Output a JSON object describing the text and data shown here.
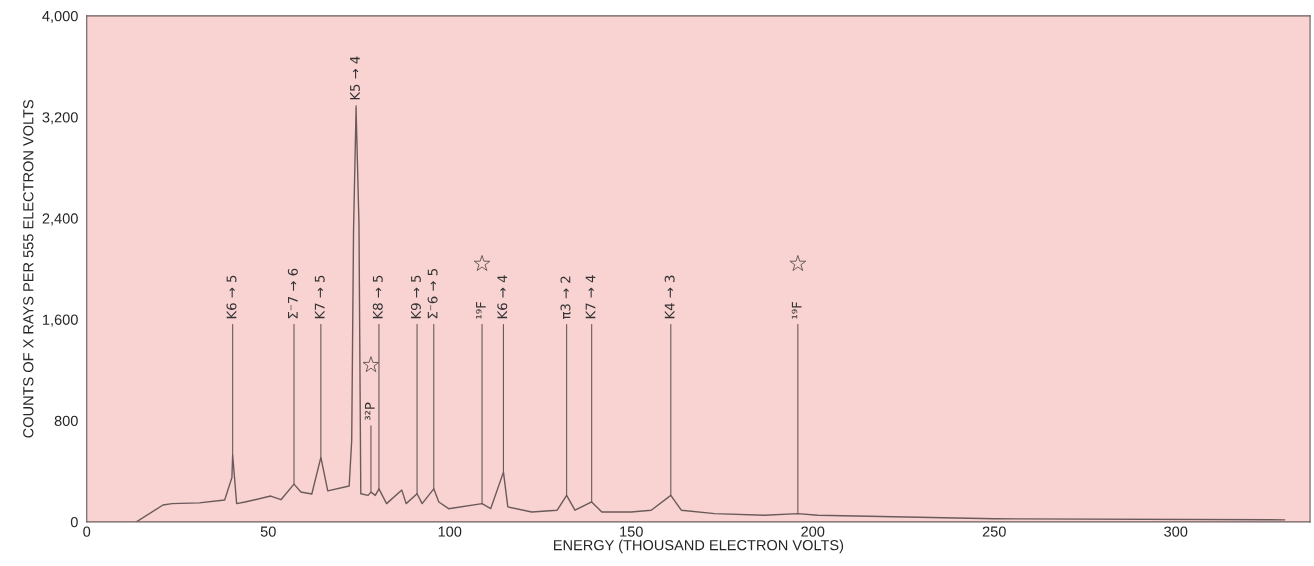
{
  "chart_data": {
    "type": "line",
    "xlabel": "ENERGY (THOUSAND ELECTRON VOLTS)",
    "ylabel": "COUNTS OF X RAYS PER 555 ELECTRON VOLTS",
    "xlim": [
      0,
      337
    ],
    "xticks": [
      0,
      50,
      100,
      150,
      200,
      250,
      300
    ],
    "ylim": [
      0,
      4000
    ],
    "yticks": [
      {
        "value": 0,
        "label": "0"
      },
      {
        "value": 800,
        "label": "800"
      },
      {
        "value": 1600,
        "label": "1,600"
      },
      {
        "value": 2400,
        "label": "2,400"
      },
      {
        "value": 3200,
        "label": "3,200"
      },
      {
        "value": 4000,
        "label": "4,000"
      }
    ],
    "grid": false,
    "legend": false,
    "marker": "none",
    "line_style": "solid",
    "series": [
      {
        "color": "#6b5a5a",
        "x": [
          13.7,
          21,
          23.5,
          31,
          38,
          40,
          40.2,
          41.3,
          43.6,
          50.7,
          53.5,
          57.1,
          59,
          62,
          64.5,
          66.4,
          72.3,
          73,
          73.5,
          74.2,
          75,
          75.5,
          77.5,
          78.3,
          79.5,
          80.5,
          82.6,
          86.8,
          88,
          91,
          92.4,
          95.6,
          97,
          99.7,
          108.9,
          111.3,
          114.8,
          116,
          122.6,
          129.6,
          132.2,
          134.5,
          139.1,
          141.9,
          150,
          155.5,
          160.9,
          163.8,
          173,
          186.7,
          195.9,
          201.4,
          250,
          330
        ],
        "values": [
          0,
          133,
          144,
          150,
          173,
          350,
          530,
          144,
          157,
          204,
          175,
          298,
          236,
          220,
          510,
          245,
          283,
          645,
          2300,
          3270,
          2350,
          222,
          209,
          235,
          209,
          261,
          144,
          251,
          144,
          222,
          144,
          261,
          157,
          104,
          144,
          105,
          393,
          118,
          78,
          92,
          209,
          92,
          157,
          78,
          78,
          92,
          209,
          92,
          65,
          52,
          65,
          52,
          24,
          16
        ]
      }
    ],
    "annotations": [
      {
        "text": "K6 → 5",
        "x": 40.2,
        "y": 530
      },
      {
        "text": "Σ⁻7 → 6",
        "x": 57.1,
        "y": 298
      },
      {
        "text": "K7 → 5",
        "x": 64.5,
        "y": 510
      },
      {
        "text": "K5 → 4",
        "x": 74.2,
        "y": 3270
      },
      {
        "text": "³²P",
        "x": 78.3,
        "y": 235
      },
      {
        "text": "K8 → 5",
        "x": 80.5,
        "y": 261
      },
      {
        "text": "K9 → 5",
        "x": 91,
        "y": 222
      },
      {
        "text": "Σ⁻6 → 5",
        "x": 95.6,
        "y": 261
      },
      {
        "text": "¹⁹F",
        "x": 108.9,
        "y": 144
      },
      {
        "text": "K6 → 4",
        "x": 114.8,
        "y": 393
      },
      {
        "text": "π3 → 2",
        "x": 132.2,
        "y": 209
      },
      {
        "text": "K7 → 4",
        "x": 139.1,
        "y": 157
      },
      {
        "text": "K4 → 3",
        "x": 160.9,
        "y": 209
      },
      {
        "text": "¹⁹F",
        "x": 195.9,
        "y": 65
      }
    ]
  }
}
